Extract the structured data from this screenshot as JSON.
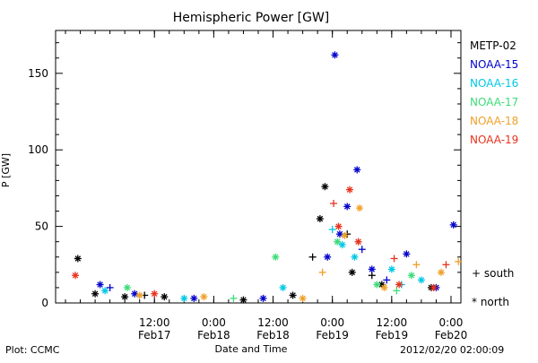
{
  "chart_data": {
    "type": "scatter",
    "title": "Hemispheric Power [GW]",
    "xlabel": "Date and Time",
    "ylabel": "P [GW]",
    "xlim": [
      "2012-02-16T16:00",
      "2012-02-20T02:00"
    ],
    "ylim": [
      0,
      178
    ],
    "y_ticks": [
      0,
      50,
      100,
      150
    ],
    "x_ticks": [
      {
        "time": "2012-02-17T12:00",
        "line1": "12:00",
        "line2": "Feb17"
      },
      {
        "time": "2012-02-18T00:00",
        "line1": "0:00",
        "line2": "Feb18"
      },
      {
        "time": "2012-02-18T12:00",
        "line1": "12:00",
        "line2": "Feb18"
      },
      {
        "time": "2012-02-19T00:00",
        "line1": "0:00",
        "line2": "Feb19"
      },
      {
        "time": "2012-02-19T12:00",
        "line1": "12:00",
        "line2": "Feb19"
      },
      {
        "time": "2012-02-20T00:00",
        "line1": "0:00",
        "line2": "Feb20"
      }
    ],
    "grid": false,
    "legend_position": "right",
    "hemisphere_markers": [
      {
        "symbol": "+",
        "label": "south"
      },
      {
        "symbol": "*",
        "label": "north"
      }
    ],
    "series": [
      {
        "name": "METP-02",
        "color": "#000000",
        "points": [
          {
            "t": "2012-02-16T20:30",
            "v": 29,
            "h": "north"
          },
          {
            "t": "2012-02-17T00:00",
            "v": 6,
            "h": "north"
          },
          {
            "t": "2012-02-17T06:00",
            "v": 4,
            "h": "north"
          },
          {
            "t": "2012-02-17T14:00",
            "v": 4,
            "h": "north"
          },
          {
            "t": "2012-02-18T06:00",
            "v": 2,
            "h": "north"
          },
          {
            "t": "2012-02-18T16:00",
            "v": 5,
            "h": "north"
          },
          {
            "t": "2012-02-18T21:30",
            "v": 55,
            "h": "north"
          },
          {
            "t": "2012-02-18T22:30",
            "v": 76,
            "h": "north"
          },
          {
            "t": "2012-02-19T04:00",
            "v": 20,
            "h": "north"
          },
          {
            "t": "2012-02-19T10:00",
            "v": 12,
            "h": "north"
          },
          {
            "t": "2012-02-19T20:00",
            "v": 10,
            "h": "north"
          },
          {
            "t": "2012-02-17T10:00",
            "v": 5,
            "h": "south"
          },
          {
            "t": "2012-02-18T20:00",
            "v": 30,
            "h": "south"
          },
          {
            "t": "2012-02-19T03:00",
            "v": 45,
            "h": "south"
          },
          {
            "t": "2012-02-19T08:00",
            "v": 18,
            "h": "south"
          }
        ]
      },
      {
        "name": "NOAA-15",
        "color": "#0000cc",
        "points": [
          {
            "t": "2012-02-17T01:00",
            "v": 12,
            "h": "north"
          },
          {
            "t": "2012-02-17T08:00",
            "v": 6,
            "h": "north"
          },
          {
            "t": "2012-02-17T20:00",
            "v": 3,
            "h": "north"
          },
          {
            "t": "2012-02-18T10:00",
            "v": 3,
            "h": "north"
          },
          {
            "t": "2012-02-18T23:00",
            "v": 30,
            "h": "north"
          },
          {
            "t": "2012-02-19T00:30",
            "v": 162,
            "h": "north"
          },
          {
            "t": "2012-02-19T01:30",
            "v": 45,
            "h": "north"
          },
          {
            "t": "2012-02-19T03:00",
            "v": 63,
            "h": "north"
          },
          {
            "t": "2012-02-19T05:00",
            "v": 87,
            "h": "north"
          },
          {
            "t": "2012-02-19T08:00",
            "v": 22,
            "h": "north"
          },
          {
            "t": "2012-02-19T15:00",
            "v": 32,
            "h": "north"
          },
          {
            "t": "2012-02-19T21:00",
            "v": 10,
            "h": "north"
          },
          {
            "t": "2012-02-20T00:30",
            "v": 51,
            "h": "north"
          },
          {
            "t": "2012-02-17T03:00",
            "v": 10,
            "h": "south"
          },
          {
            "t": "2012-02-19T06:00",
            "v": 35,
            "h": "south"
          },
          {
            "t": "2012-02-19T11:00",
            "v": 15,
            "h": "south"
          }
        ]
      },
      {
        "name": "NOAA-16",
        "color": "#00c8e6",
        "points": [
          {
            "t": "2012-02-17T02:00",
            "v": 8,
            "h": "north"
          },
          {
            "t": "2012-02-17T18:00",
            "v": 3,
            "h": "north"
          },
          {
            "t": "2012-02-18T14:00",
            "v": 10,
            "h": "north"
          },
          {
            "t": "2012-02-19T02:00",
            "v": 38,
            "h": "north"
          },
          {
            "t": "2012-02-19T04:30",
            "v": 30,
            "h": "north"
          },
          {
            "t": "2012-02-19T12:00",
            "v": 22,
            "h": "north"
          },
          {
            "t": "2012-02-19T18:00",
            "v": 15,
            "h": "north"
          },
          {
            "t": "2012-02-19T00:00",
            "v": 48,
            "h": "south"
          },
          {
            "t": "2012-02-19T14:00",
            "v": 12,
            "h": "south"
          }
        ]
      },
      {
        "name": "NOAA-17",
        "color": "#3cdc78",
        "points": [
          {
            "t": "2012-02-17T06:30",
            "v": 10,
            "h": "north"
          },
          {
            "t": "2012-02-18T12:30",
            "v": 30,
            "h": "north"
          },
          {
            "t": "2012-02-19T01:00",
            "v": 40,
            "h": "north"
          },
          {
            "t": "2012-02-19T09:00",
            "v": 12,
            "h": "north"
          },
          {
            "t": "2012-02-19T16:00",
            "v": 18,
            "h": "north"
          },
          {
            "t": "2012-02-18T04:00",
            "v": 3,
            "h": "south"
          },
          {
            "t": "2012-02-19T13:00",
            "v": 8,
            "h": "south"
          }
        ]
      },
      {
        "name": "NOAA-18",
        "color": "#f0a028",
        "points": [
          {
            "t": "2012-02-17T09:00",
            "v": 5,
            "h": "north"
          },
          {
            "t": "2012-02-17T22:00",
            "v": 4,
            "h": "north"
          },
          {
            "t": "2012-02-18T18:00",
            "v": 3,
            "h": "north"
          },
          {
            "t": "2012-02-19T02:30",
            "v": 44,
            "h": "north"
          },
          {
            "t": "2012-02-19T05:30",
            "v": 62,
            "h": "north"
          },
          {
            "t": "2012-02-19T10:30",
            "v": 10,
            "h": "north"
          },
          {
            "t": "2012-02-19T22:00",
            "v": 20,
            "h": "north"
          },
          {
            "t": "2012-02-18T22:00",
            "v": 20,
            "h": "south"
          },
          {
            "t": "2012-02-19T17:00",
            "v": 25,
            "h": "south"
          },
          {
            "t": "2012-02-20T01:30",
            "v": 27,
            "h": "south"
          }
        ]
      },
      {
        "name": "NOAA-19",
        "color": "#e8321e",
        "points": [
          {
            "t": "2012-02-16T20:00",
            "v": 18,
            "h": "north"
          },
          {
            "t": "2012-02-17T12:00",
            "v": 6,
            "h": "north"
          },
          {
            "t": "2012-02-19T01:15",
            "v": 50,
            "h": "north"
          },
          {
            "t": "2012-02-19T03:30",
            "v": 74,
            "h": "north"
          },
          {
            "t": "2012-02-19T05:15",
            "v": 40,
            "h": "north"
          },
          {
            "t": "2012-02-19T13:30",
            "v": 12,
            "h": "north"
          },
          {
            "t": "2012-02-19T20:30",
            "v": 10,
            "h": "north"
          },
          {
            "t": "2012-02-19T00:15",
            "v": 65,
            "h": "south"
          },
          {
            "t": "2012-02-19T12:30",
            "v": 29,
            "h": "south"
          },
          {
            "t": "2012-02-19T23:00",
            "v": 25,
            "h": "south"
          }
        ]
      }
    ]
  },
  "footer": {
    "left": "Plot: CCMC",
    "right": "2012/02/20 02:00:09"
  }
}
